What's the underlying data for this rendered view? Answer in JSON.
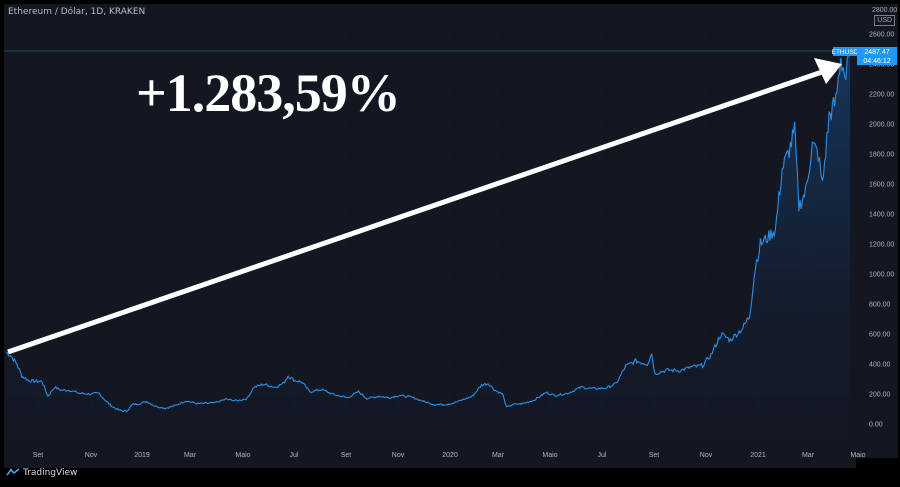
{
  "header": {
    "symbol_line": "Ethereum / Dólar, 1D, KRAKEN"
  },
  "overlay": {
    "annotation": "+1.283,59%"
  },
  "price_tag": {
    "symbol": "ETHUSD",
    "price": "2487.47",
    "countdown": "04:46:12",
    "color": "#2196f3"
  },
  "currency": {
    "top_label": "2800.00",
    "unit": "USD"
  },
  "watermark": {
    "text": "TradingView"
  },
  "colors": {
    "line": "#2a8ee6",
    "fill": "#0e2744",
    "background": "#131722",
    "grid": "#1c212d",
    "axis_text": "#b2b5be"
  },
  "chart_data": {
    "type": "area",
    "series": [
      {
        "name": "ETHUSD",
        "values": []
      }
    ],
    "x_ticks": [
      "Set",
      "Nov",
      "2019",
      "Mar",
      "Maio",
      "Jul",
      "Set",
      "Nov",
      "2020",
      "Mar",
      "Maio",
      "Jul",
      "Set",
      "Nov",
      "2021",
      "Mar",
      "Maio"
    ],
    "y_ticks": [
      "0.00",
      "200.00",
      "400.00",
      "600.00",
      "800.00",
      "1000.00",
      "1200.00",
      "1400.00",
      "1600.00",
      "1800.00",
      "2000.00",
      "2200.00",
      "2400.00",
      "2600.00"
    ],
    "ylim": [
      -50,
      2800
    ],
    "points": [
      [
        "2018-07-24",
        480
      ],
      [
        "2018-07-30",
        455
      ],
      [
        "2018-08-06",
        400
      ],
      [
        "2018-08-12",
        320
      ],
      [
        "2018-08-20",
        290
      ],
      [
        "2018-08-28",
        285
      ],
      [
        "2018-09-05",
        285
      ],
      [
        "2018-09-12",
        185
      ],
      [
        "2018-09-20",
        245
      ],
      [
        "2018-09-28",
        225
      ],
      [
        "2018-10-08",
        225
      ],
      [
        "2018-10-20",
        205
      ],
      [
        "2018-11-01",
        200
      ],
      [
        "2018-11-12",
        205
      ],
      [
        "2018-11-20",
        155
      ],
      [
        "2018-11-28",
        115
      ],
      [
        "2018-12-07",
        90
      ],
      [
        "2018-12-15",
        85
      ],
      [
        "2018-12-22",
        130
      ],
      [
        "2018-12-30",
        135
      ],
      [
        "2019-01-08",
        150
      ],
      [
        "2019-01-18",
        120
      ],
      [
        "2019-01-30",
        105
      ],
      [
        "2019-02-10",
        120
      ],
      [
        "2019-02-24",
        155
      ],
      [
        "2019-03-10",
        135
      ],
      [
        "2019-03-30",
        140
      ],
      [
        "2019-04-12",
        165
      ],
      [
        "2019-04-26",
        155
      ],
      [
        "2019-05-08",
        170
      ],
      [
        "2019-05-16",
        245
      ],
      [
        "2019-05-28",
        265
      ],
      [
        "2019-06-10",
        245
      ],
      [
        "2019-06-20",
        270
      ],
      [
        "2019-06-26",
        320
      ],
      [
        "2019-07-04",
        290
      ],
      [
        "2019-07-12",
        280
      ],
      [
        "2019-07-22",
        215
      ],
      [
        "2019-08-05",
        230
      ],
      [
        "2019-08-20",
        195
      ],
      [
        "2019-09-05",
        175
      ],
      [
        "2019-09-18",
        215
      ],
      [
        "2019-09-28",
        170
      ],
      [
        "2019-10-12",
        185
      ],
      [
        "2019-10-25",
        175
      ],
      [
        "2019-11-05",
        190
      ],
      [
        "2019-11-20",
        180
      ],
      [
        "2019-12-05",
        150
      ],
      [
        "2019-12-18",
        130
      ],
      [
        "2019-12-30",
        130
      ],
      [
        "2020-01-10",
        140
      ],
      [
        "2020-01-22",
        165
      ],
      [
        "2020-02-01",
        185
      ],
      [
        "2020-02-12",
        260
      ],
      [
        "2020-02-20",
        270
      ],
      [
        "2020-02-28",
        225
      ],
      [
        "2020-03-08",
        200
      ],
      [
        "2020-03-13",
        110
      ],
      [
        "2020-03-20",
        130
      ],
      [
        "2020-04-01",
        135
      ],
      [
        "2020-04-15",
        160
      ],
      [
        "2020-04-29",
        210
      ],
      [
        "2020-05-10",
        190
      ],
      [
        "2020-05-25",
        205
      ],
      [
        "2020-06-10",
        245
      ],
      [
        "2020-06-25",
        235
      ],
      [
        "2020-07-10",
        240
      ],
      [
        "2020-07-22",
        270
      ],
      [
        "2020-08-02",
        385
      ],
      [
        "2020-08-14",
        420
      ],
      [
        "2020-08-28",
        400
      ],
      [
        "2020-09-02",
        470
      ],
      [
        "2020-09-06",
        335
      ],
      [
        "2020-09-20",
        360
      ],
      [
        "2020-10-05",
        355
      ],
      [
        "2020-10-20",
        380
      ],
      [
        "2020-11-02",
        390
      ],
      [
        "2020-11-12",
        460
      ],
      [
        "2020-11-24",
        600
      ],
      [
        "2020-12-05",
        560
      ],
      [
        "2020-12-20",
        640
      ],
      [
        "2020-12-28",
        720
      ],
      [
        "2021-01-04",
        1050
      ],
      [
        "2021-01-10",
        1200
      ],
      [
        "2021-01-20",
        1250
      ],
      [
        "2021-01-28",
        1300
      ],
      [
        "2021-02-05",
        1700
      ],
      [
        "2021-02-12",
        1800
      ],
      [
        "2021-02-20",
        1950
      ],
      [
        "2021-02-25",
        1450
      ],
      [
        "2021-03-05",
        1550
      ],
      [
        "2021-03-13",
        1860
      ],
      [
        "2021-03-20",
        1800
      ],
      [
        "2021-03-25",
        1590
      ],
      [
        "2021-04-02",
        2050
      ],
      [
        "2021-04-10",
        2150
      ],
      [
        "2021-04-16",
        2450
      ],
      [
        "2021-04-22",
        2300
      ],
      [
        "2021-04-27",
        2487
      ]
    ],
    "x_range": [
      "2018-07-24",
      "2021-05-04"
    ]
  }
}
